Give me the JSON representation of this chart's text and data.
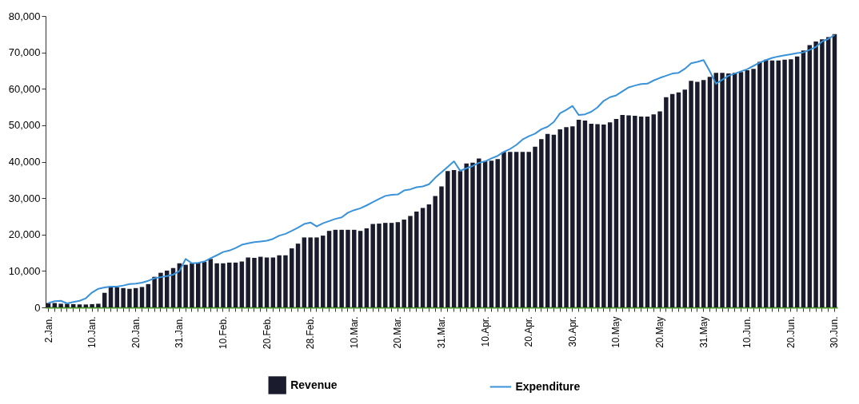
{
  "chart_data": {
    "type": "bar",
    "categories": [
      "2.Jan.",
      null,
      null,
      null,
      null,
      null,
      null,
      "10.Jan.",
      null,
      null,
      null,
      null,
      null,
      null,
      "20.Jan.",
      null,
      null,
      null,
      null,
      null,
      null,
      "31.Jan.",
      null,
      null,
      null,
      null,
      null,
      null,
      "10.Feb.",
      null,
      null,
      null,
      null,
      null,
      null,
      "20.Feb.",
      null,
      null,
      null,
      null,
      null,
      null,
      "28.Feb.",
      null,
      null,
      null,
      null,
      null,
      null,
      "10.Mar.",
      null,
      null,
      null,
      null,
      null,
      null,
      "20.Mar.",
      null,
      null,
      null,
      null,
      null,
      null,
      "31.Mar.",
      null,
      null,
      null,
      null,
      null,
      null,
      "10.Apr.",
      null,
      null,
      null,
      null,
      null,
      null,
      "20.Apr.",
      null,
      null,
      null,
      null,
      null,
      null,
      "30.Apr.",
      null,
      null,
      null,
      null,
      null,
      null,
      "10.May",
      null,
      null,
      null,
      null,
      null,
      null,
      "20.May",
      null,
      null,
      null,
      null,
      null,
      null,
      "31.May",
      null,
      null,
      null,
      null,
      null,
      null,
      "10.Jun.",
      null,
      null,
      null,
      null,
      null,
      null,
      "20.Jun.",
      null,
      null,
      null,
      null,
      null,
      null,
      "30.Jun."
    ],
    "series": [
      {
        "name": "Revenue",
        "type": "bar",
        "color": "#1a1c2e",
        "values": [
          1200,
          1200,
          1000,
          1000,
          900,
          800,
          800,
          900,
          1000,
          4000,
          5500,
          5500,
          5300,
          5100,
          5300,
          5600,
          6400,
          8400,
          9500,
          10100,
          10800,
          12100,
          11700,
          12100,
          12300,
          12500,
          13300,
          12100,
          12100,
          12300,
          12300,
          12600,
          13700,
          13600,
          13900,
          13700,
          13700,
          14300,
          14300,
          16200,
          17500,
          19200,
          19200,
          19200,
          19700,
          21000,
          21300,
          21300,
          21300,
          21300,
          21000,
          21700,
          22900,
          23000,
          23200,
          23200,
          23400,
          24100,
          25100,
          26300,
          27300,
          28300,
          30600,
          33200,
          37400,
          37700,
          37400,
          39500,
          39700,
          40900,
          40100,
          40300,
          40700,
          42700,
          42700,
          42700,
          42700,
          42700,
          44100,
          46200,
          47600,
          47400,
          48900,
          49500,
          49700,
          51500,
          51300,
          50400,
          50300,
          50200,
          50800,
          51700,
          52800,
          52700,
          52600,
          52400,
          52400,
          53000,
          53800,
          57700,
          58600,
          59000,
          59800,
          62200,
          61900,
          62400,
          63300,
          64400,
          64400,
          64200,
          64400,
          64600,
          65100,
          65500,
          67400,
          68000,
          67800,
          67800,
          68000,
          68100,
          68900,
          70500,
          72000,
          73000,
          73600,
          74200,
          75000
        ]
      },
      {
        "name": "Expenditure",
        "type": "line",
        "color": "#3a93d8",
        "values": [
          1200,
          1700,
          1800,
          1100,
          1500,
          1800,
          2500,
          4100,
          5100,
          5500,
          5700,
          5700,
          6000,
          6400,
          6500,
          6800,
          7300,
          8000,
          8300,
          8600,
          9000,
          10000,
          13300,
          12100,
          12200,
          12600,
          13500,
          14300,
          15200,
          15600,
          16300,
          17200,
          17600,
          17900,
          18100,
          18300,
          18800,
          19700,
          20200,
          21000,
          21900,
          22900,
          23300,
          22200,
          23100,
          23700,
          24300,
          24700,
          26000,
          26700,
          27200,
          28000,
          28900,
          29800,
          30600,
          30900,
          31000,
          32100,
          32400,
          33000,
          33200,
          33800,
          35600,
          37100,
          38600,
          40100,
          37500,
          38200,
          38800,
          39700,
          40100,
          40900,
          41600,
          42700,
          43500,
          44600,
          46100,
          47000,
          47700,
          48900,
          49600,
          50900,
          53300,
          54200,
          55300,
          52800,
          53000,
          53700,
          54900,
          56700,
          57700,
          58200,
          59300,
          60400,
          60900,
          61300,
          61400,
          62300,
          63000,
          63600,
          64200,
          64400,
          65500,
          67000,
          67400,
          67900,
          64800,
          61400,
          62500,
          63600,
          64200,
          64800,
          65400,
          66300,
          67200,
          67900,
          68500,
          68900,
          69200,
          69500,
          69800,
          70000,
          70700,
          71500,
          73000,
          73700,
          74800
        ]
      }
    ],
    "ylim": [
      0,
      80000
    ],
    "yticks": [
      {
        "value": 0,
        "label": "0"
      },
      {
        "value": 10000,
        "label": "10,000"
      },
      {
        "value": 20000,
        "label": "20,000"
      },
      {
        "value": 30000,
        "label": "30,000"
      },
      {
        "value": 40000,
        "label": "40,000"
      },
      {
        "value": 50000,
        "label": "50,000"
      },
      {
        "value": 60000,
        "label": "60,000"
      },
      {
        "value": 70000,
        "label": "70,000"
      },
      {
        "value": 80000,
        "label": "80,000"
      }
    ],
    "grid": false,
    "legend": "bottom"
  }
}
